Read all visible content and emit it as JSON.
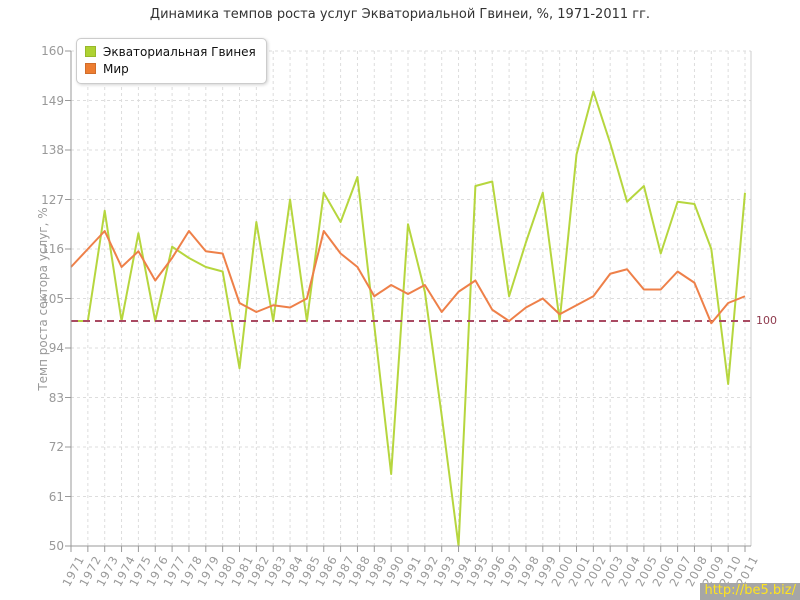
{
  "title": "Динамика темпов роста услуг Экваториальной Гвинеи, %, 1971-2011 гг.",
  "y_axis_label": "Темп роста сектора услуг, %",
  "watermark": "http://be5.biz/",
  "legend": [
    {
      "label": "Экваториальная Гвинея",
      "color": "#aed232"
    },
    {
      "label": "Мир",
      "color": "#ed7d31"
    }
  ],
  "colors": {
    "guinea_line": "#b6d63e",
    "world_line": "#ee8049",
    "grid": "#dddddd",
    "axis": "#999999",
    "plot_border": "#cccccc",
    "tick_text": "#999999",
    "reference_line": "#a94a62",
    "reference_label": "#8e3a4d",
    "watermark_bg": "#a6a6a6",
    "watermark_text": "#ffe41e"
  },
  "chart_data": {
    "type": "line",
    "x": [
      1971,
      1972,
      1973,
      1974,
      1975,
      1976,
      1977,
      1978,
      1979,
      1980,
      1981,
      1982,
      1983,
      1984,
      1985,
      1986,
      1987,
      1988,
      1989,
      1990,
      1991,
      1992,
      1993,
      1994,
      1995,
      1996,
      1997,
      1998,
      1999,
      2000,
      2001,
      2002,
      2003,
      2004,
      2005,
      2006,
      2007,
      2008,
      2009,
      2010,
      2011
    ],
    "series": [
      {
        "name": "Экваториальная Гвинея",
        "values": [
          100,
          100,
          124.5,
          100,
          119.5,
          100,
          116.5,
          114,
          112,
          111,
          89.5,
          122,
          100,
          127,
          100,
          128.5,
          122,
          132,
          99,
          66,
          121.5,
          106.5,
          79,
          50,
          130,
          131,
          105.5,
          117.5,
          128.5,
          100,
          137,
          151,
          139.5,
          126.5,
          130,
          115,
          126.5,
          126,
          116,
          86,
          128.5
        ]
      },
      {
        "name": "Мир",
        "values": [
          112,
          116,
          120,
          112,
          115.5,
          109,
          114,
          120,
          115.5,
          115,
          104,
          102,
          103.5,
          103,
          105,
          120,
          115,
          112,
          105.5,
          108,
          106,
          108,
          102,
          106.5,
          109,
          102.5,
          100,
          103,
          105,
          101.5,
          103.5,
          105.5,
          110.5,
          111.5,
          107,
          107,
          111,
          108.5,
          99.5,
          104,
          105.5
        ]
      }
    ],
    "ylim": [
      50,
      160
    ],
    "y_ticks": [
      50,
      61,
      72,
      83,
      94,
      105,
      116,
      127,
      138,
      149,
      160
    ],
    "reference_line": {
      "value": 100,
      "label": "100"
    },
    "grid": "dashed",
    "legend_position": "top-left"
  }
}
